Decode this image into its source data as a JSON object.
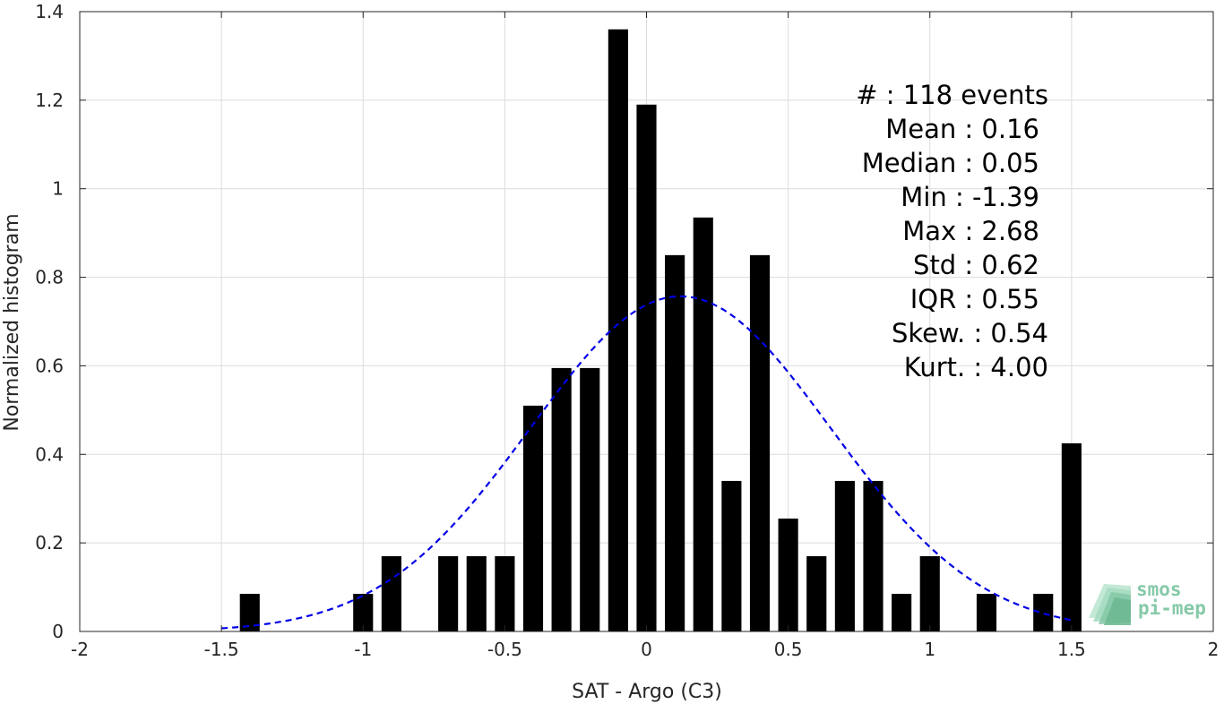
{
  "chart_data": {
    "type": "bar",
    "xlabel": "SAT - Argo (C3)",
    "ylabel": "Normalized histogram",
    "xlim": [
      -2,
      2
    ],
    "ylim": [
      0,
      1.4
    ],
    "xticks": [
      "-2",
      "-1.5",
      "-1",
      "-0.5",
      "0",
      "0.5",
      "1",
      "1.5",
      "2"
    ],
    "yticks": [
      "0",
      "0.2",
      "0.4",
      "0.6",
      "0.8",
      "1",
      "1.2",
      "1.4"
    ],
    "grid": true,
    "bar_width": 0.07,
    "bars": [
      {
        "x": -1.4,
        "y": 0.085
      },
      {
        "x": -1.0,
        "y": 0.085
      },
      {
        "x": -0.9,
        "y": 0.17
      },
      {
        "x": -0.7,
        "y": 0.17
      },
      {
        "x": -0.6,
        "y": 0.17
      },
      {
        "x": -0.5,
        "y": 0.17
      },
      {
        "x": -0.4,
        "y": 0.51
      },
      {
        "x": -0.3,
        "y": 0.595
      },
      {
        "x": -0.2,
        "y": 0.595
      },
      {
        "x": -0.1,
        "y": 1.36
      },
      {
        "x": 0.0,
        "y": 1.19
      },
      {
        "x": 0.1,
        "y": 0.85
      },
      {
        "x": 0.2,
        "y": 0.935
      },
      {
        "x": 0.3,
        "y": 0.34
      },
      {
        "x": 0.4,
        "y": 0.85
      },
      {
        "x": 0.5,
        "y": 0.255
      },
      {
        "x": 0.6,
        "y": 0.17
      },
      {
        "x": 0.7,
        "y": 0.34
      },
      {
        "x": 0.8,
        "y": 0.34
      },
      {
        "x": 0.9,
        "y": 0.085
      },
      {
        "x": 1.0,
        "y": 0.17
      },
      {
        "x": 1.2,
        "y": 0.085
      },
      {
        "x": 1.4,
        "y": 0.085
      },
      {
        "x": 1.5,
        "y": 0.425
      }
    ],
    "fit_curve": {
      "style": "dashed",
      "color": "#0000e6",
      "x_range": [
        -1.5,
        1.5
      ],
      "mean": 0.12,
      "std": 0.53,
      "peak": 0.757
    },
    "stats": [
      "#  : 118 events",
      "Mean : 0.16",
      "Median : 0.05",
      "Min : -1.39",
      "Max : 2.68",
      "Std : 0.62",
      "IQR : 0.55",
      "Skew. : 0.54",
      "Kurt. : 4.00"
    ],
    "colors": {
      "bars": "#000000",
      "fit": "#0000e6",
      "logo": "#86c9a8"
    }
  },
  "logo": {
    "line1": "smos",
    "line2": "pi-mep"
  }
}
